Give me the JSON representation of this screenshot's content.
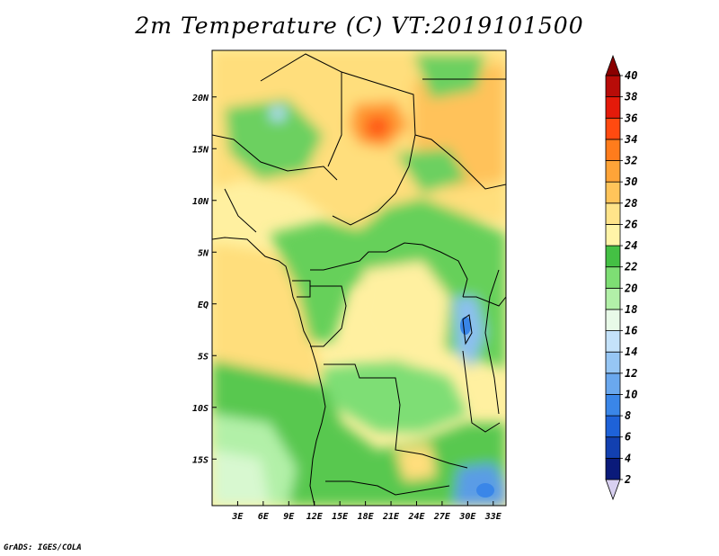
{
  "title": "2m Temperature (C) VT:2019101500",
  "footer": "GrADS: IGES/COLA",
  "map": {
    "lon_range": [
      0,
      34.5
    ],
    "lat_range": [
      -19.5,
      24.5
    ],
    "lon_ticks": [
      {
        "value": 3,
        "label": "3E"
      },
      {
        "value": 6,
        "label": "6E"
      },
      {
        "value": 9,
        "label": "9E"
      },
      {
        "value": 12,
        "label": "12E"
      },
      {
        "value": 15,
        "label": "15E"
      },
      {
        "value": 18,
        "label": "18E"
      },
      {
        "value": 21,
        "label": "21E"
      },
      {
        "value": 24,
        "label": "24E"
      },
      {
        "value": 27,
        "label": "27E"
      },
      {
        "value": 30,
        "label": "30E"
      },
      {
        "value": 33,
        "label": "33E"
      }
    ],
    "lat_ticks": [
      {
        "value": 20,
        "label": "20N"
      },
      {
        "value": 15,
        "label": "15N"
      },
      {
        "value": 10,
        "label": "10N"
      },
      {
        "value": 5,
        "label": "5N"
      },
      {
        "value": 0,
        "label": "EQ"
      },
      {
        "value": -5,
        "label": "5S"
      },
      {
        "value": -10,
        "label": "10S"
      },
      {
        "value": -15,
        "label": "15S"
      }
    ]
  },
  "colorbar": {
    "levels": [
      "2",
      "4",
      "6",
      "8",
      "10",
      "12",
      "14",
      "16",
      "18",
      "20",
      "22",
      "24",
      "26",
      "28",
      "30",
      "32",
      "34",
      "36",
      "38",
      "40"
    ],
    "colors": [
      "#d8d0f0",
      "#0a1a7a",
      "#1240b0",
      "#1e62d8",
      "#3a86e8",
      "#6aa8ee",
      "#96c6f4",
      "#c4e2fa",
      "#e8fae8",
      "#b2f0a8",
      "#7ede74",
      "#44c044",
      "#fff4a8",
      "#ffe48a",
      "#ffc45a",
      "#ffa438",
      "#ff7c1c",
      "#ff4a10",
      "#e41a0a",
      "#b80c08",
      "#8a0000"
    ]
  }
}
